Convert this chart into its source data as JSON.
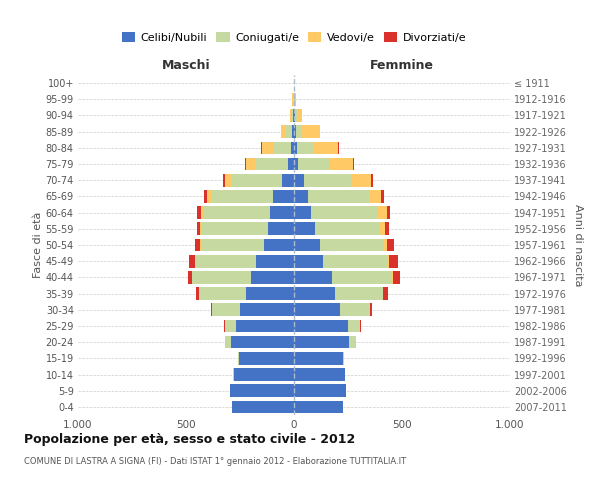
{
  "age_groups": [
    "0-4",
    "5-9",
    "10-14",
    "15-19",
    "20-24",
    "25-29",
    "30-34",
    "35-39",
    "40-44",
    "45-49",
    "50-54",
    "55-59",
    "60-64",
    "65-69",
    "70-74",
    "75-79",
    "80-84",
    "85-89",
    "90-94",
    "95-99",
    "100+"
  ],
  "birth_years": [
    "2007-2011",
    "2002-2006",
    "1997-2001",
    "1992-1996",
    "1987-1991",
    "1982-1986",
    "1977-1981",
    "1972-1976",
    "1967-1971",
    "1962-1966",
    "1957-1961",
    "1952-1956",
    "1947-1951",
    "1942-1946",
    "1937-1941",
    "1932-1936",
    "1927-1931",
    "1922-1926",
    "1917-1921",
    "1912-1916",
    "≤ 1911"
  ],
  "maschi": {
    "celibi": [
      285,
      295,
      280,
      255,
      290,
      270,
      250,
      220,
      200,
      175,
      140,
      120,
      110,
      95,
      55,
      30,
      15,
      8,
      5,
      2,
      2
    ],
    "coniugati": [
      0,
      1,
      2,
      5,
      30,
      50,
      130,
      220,
      270,
      280,
      290,
      310,
      310,
      290,
      230,
      145,
      80,
      30,
      8,
      3,
      0
    ],
    "vedovi": [
      0,
      0,
      0,
      0,
      0,
      0,
      1,
      1,
      2,
      2,
      5,
      5,
      12,
      20,
      35,
      45,
      55,
      20,
      5,
      2,
      0
    ],
    "divorziati": [
      0,
      0,
      0,
      0,
      1,
      2,
      5,
      15,
      20,
      30,
      25,
      15,
      15,
      10,
      10,
      5,
      2,
      0,
      0,
      0,
      0
    ]
  },
  "femmine": {
    "nubili": [
      225,
      240,
      235,
      225,
      255,
      250,
      215,
      190,
      175,
      135,
      120,
      95,
      80,
      65,
      45,
      20,
      15,
      10,
      5,
      2,
      2
    ],
    "coniugate": [
      0,
      1,
      2,
      8,
      30,
      55,
      135,
      220,
      280,
      295,
      295,
      305,
      310,
      280,
      220,
      145,
      75,
      25,
      8,
      2,
      0
    ],
    "vedove": [
      0,
      0,
      0,
      0,
      0,
      1,
      2,
      3,
      5,
      8,
      15,
      20,
      40,
      60,
      90,
      110,
      115,
      85,
      25,
      5,
      0
    ],
    "divorziate": [
      0,
      0,
      0,
      0,
      1,
      3,
      8,
      20,
      30,
      45,
      35,
      20,
      15,
      12,
      10,
      5,
      2,
      0,
      0,
      0,
      0
    ]
  },
  "colors": {
    "celibi": "#4472c4",
    "coniugati": "#c5d9a0",
    "vedovi": "#ffc966",
    "divorziati": "#d9312b"
  },
  "title": "Popolazione per età, sesso e stato civile - 2012",
  "subtitle": "COMUNE DI LASTRA A SIGNA (FI) - Dati ISTAT 1° gennaio 2012 - Elaborazione TUTTITALIA.IT",
  "xlabel_left": "Maschi",
  "xlabel_right": "Femmine",
  "ylabel_left": "Fasce di età",
  "ylabel_right": "Anni di nascita",
  "xlim": 1000,
  "legend_labels": [
    "Celibi/Nubili",
    "Coniugati/e",
    "Vedovi/e",
    "Divorziati/e"
  ],
  "background_color": "#ffffff",
  "grid_color": "#cccccc"
}
